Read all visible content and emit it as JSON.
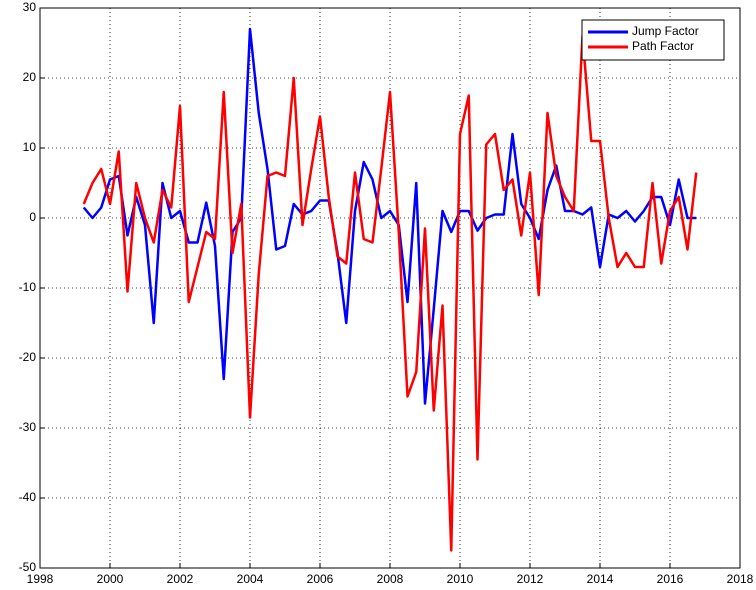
{
  "chart_data": {
    "type": "line",
    "x": [
      1999.25,
      1999.5,
      1999.75,
      2000,
      2000.25,
      2000.5,
      2000.75,
      2001,
      2001.25,
      2001.5,
      2001.75,
      2002,
      2002.25,
      2002.5,
      2002.75,
      2003,
      2003.25,
      2003.5,
      2003.75,
      2004,
      2004.25,
      2004.5,
      2004.75,
      2005,
      2005.25,
      2005.5,
      2005.75,
      2006,
      2006.25,
      2006.5,
      2006.75,
      2007,
      2007.25,
      2007.5,
      2007.75,
      2008,
      2008.25,
      2008.5,
      2008.75,
      2009,
      2009.25,
      2009.5,
      2009.75,
      2010,
      2010.25,
      2010.5,
      2010.75,
      2011,
      2011.25,
      2011.5,
      2011.75,
      2012,
      2012.25,
      2012.5,
      2012.75,
      2013,
      2013.25,
      2013.5,
      2013.75,
      2014,
      2014.25,
      2014.5,
      2014.75,
      2015,
      2015.25,
      2015.5,
      2015.75,
      2016,
      2016.25,
      2016.5,
      2016.75
    ],
    "series": [
      {
        "name": "Jump Factor",
        "color": "#0000ff",
        "values": [
          1.5,
          0,
          1.5,
          5.5,
          6,
          -2.5,
          3,
          -1,
          -15,
          5,
          0,
          1,
          -3.5,
          -3.5,
          2.2,
          -4,
          -23,
          -2,
          0,
          27,
          15,
          7,
          -4.5,
          -4,
          2,
          0.5,
          1,
          2.5,
          2.5,
          -5,
          -15,
          1,
          8,
          5.5,
          0,
          1,
          -1,
          -12,
          5,
          -26.5,
          -13,
          1,
          -2,
          1,
          1,
          -1.8,
          0,
          0.5,
          0.5,
          12,
          2,
          0,
          -3,
          4,
          7.5,
          1,
          1,
          0.5,
          1.5,
          -7,
          0.5,
          0,
          1,
          -0.5,
          1,
          3,
          3,
          -1,
          5.5,
          0,
          0
        ]
      },
      {
        "name": "Path Factor",
        "color": "#ff0000",
        "values": [
          2,
          5,
          7,
          2,
          9.5,
          -10.5,
          5,
          0,
          -3.5,
          4,
          1.5,
          16,
          -12,
          -7,
          -2,
          -3,
          18,
          -5,
          2,
          -28.5,
          -8,
          6,
          6.5,
          6,
          20,
          -1,
          7,
          14.5,
          3,
          -5.5,
          -6.5,
          6.5,
          -3,
          -3.5,
          7,
          18,
          -2,
          -25.5,
          -22,
          -1.5,
          -27.5,
          -12.5,
          -47.5,
          12,
          17.5,
          -34.5,
          10.5,
          12,
          4,
          5.5,
          -2.5,
          6.5,
          -11,
          15,
          6,
          3,
          1,
          26,
          11,
          11,
          0,
          -7,
          -5,
          -7,
          -7,
          5,
          -6.5,
          1,
          3,
          -4.5,
          6.5
        ]
      }
    ],
    "xlim": [
      1998,
      2018
    ],
    "xticks": [
      1998,
      2000,
      2002,
      2004,
      2006,
      2008,
      2010,
      2012,
      2014,
      2016,
      2018
    ],
    "ylim": [
      -50,
      30
    ],
    "yticks": [
      -50,
      -40,
      -30,
      -20,
      -10,
      0,
      10,
      20,
      30
    ],
    "grid": true,
    "legend": "northeast"
  }
}
